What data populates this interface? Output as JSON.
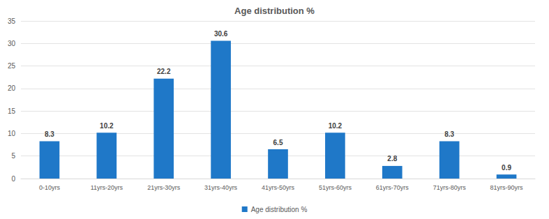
{
  "chart_data": {
    "type": "bar",
    "title": "Age distribution %",
    "categories": [
      "0-10yrs",
      "11yrs-20yrs",
      "21yrs-30yrs",
      "31yrs-40yrs",
      "41yrs-50yrs",
      "51yrs-60yrs",
      "61yrs-70yrs",
      "71yrs-80yrs",
      "81yrs-90yrs"
    ],
    "series": [
      {
        "name": "Age distribution %",
        "color": "#1f78c8",
        "values": [
          8.3,
          10.2,
          22.2,
          30.6,
          6.5,
          10.2,
          2.8,
          8.3,
          0.9
        ]
      }
    ],
    "ylim": [
      0,
      35
    ],
    "yticks": [
      0,
      5,
      10,
      15,
      20,
      25,
      30,
      35
    ],
    "grid": true,
    "data_labels": true,
    "legend": "bottom"
  }
}
